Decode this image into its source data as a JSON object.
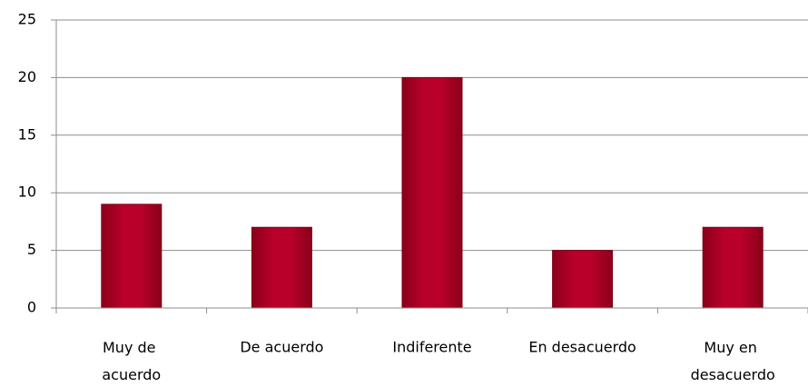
{
  "chart_data": {
    "type": "bar",
    "categories": [
      "Muy de acuerdo",
      "De acuerdo",
      "Indiferente",
      "En desacuerdo",
      "Muy en desacuerdo"
    ],
    "values": [
      9,
      7,
      20,
      5,
      7
    ],
    "color": "#a8001f",
    "ylim": [
      0,
      25
    ],
    "yticks": [
      0,
      5,
      10,
      15,
      20,
      25
    ],
    "grid": true
  }
}
